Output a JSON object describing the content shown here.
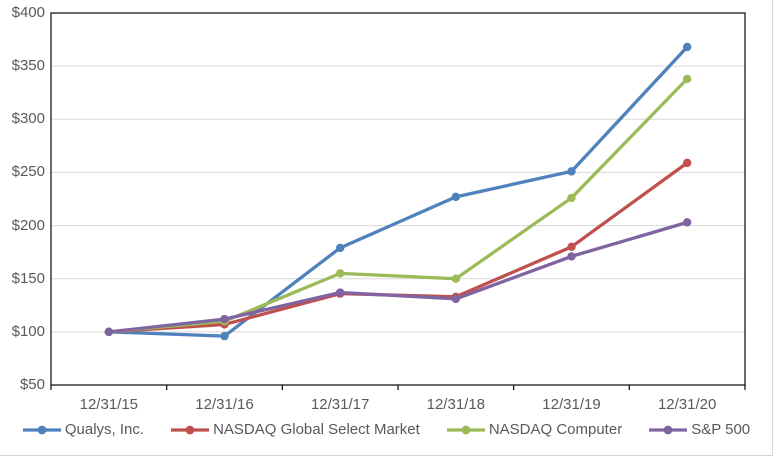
{
  "chart_data": {
    "type": "line",
    "title": "",
    "categories": [
      "12/31/15",
      "12/31/16",
      "12/31/17",
      "12/31/18",
      "12/31/19",
      "12/31/20"
    ],
    "series": [
      {
        "name": "Qualys, Inc.",
        "color": "#4F81BD",
        "values": [
          100,
          96,
          179,
          227,
          251,
          368
        ]
      },
      {
        "name": "NASDAQ Global Select Market",
        "color": "#C0504D",
        "values": [
          100,
          107,
          136,
          133,
          180,
          259
        ]
      },
      {
        "name": "NASDAQ Computer",
        "color": "#9BBB59",
        "values": [
          100,
          110,
          155,
          150,
          226,
          338
        ]
      },
      {
        "name": "S&P 500",
        "color": "#8064A2",
        "values": [
          100,
          112,
          137,
          131,
          171,
          203
        ]
      }
    ],
    "marker": "circle",
    "xlabel": "",
    "ylabel": "",
    "ylim": [
      50,
      400
    ],
    "y_ticks": [
      {
        "label": "$400",
        "value": 400
      },
      {
        "label": "$350",
        "value": 350
      },
      {
        "label": "$300",
        "value": 300
      },
      {
        "label": "$250",
        "value": 250
      },
      {
        "label": "$200",
        "value": 200
      },
      {
        "label": "$150",
        "value": 150
      },
      {
        "label": "$100",
        "value": 100
      },
      {
        "label": "$50",
        "value": 50
      }
    ],
    "grid": true,
    "legend_position": "bottom",
    "colors": {
      "axis_text": "#595959",
      "gridline": "#D9D9D9",
      "axis_line": "#1a1a1a",
      "background": "#FFFFFF"
    }
  }
}
